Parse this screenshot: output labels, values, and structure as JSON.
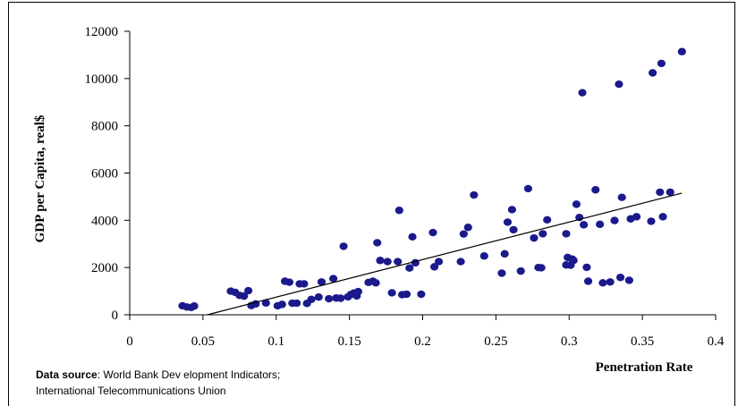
{
  "chart_data": {
    "type": "scatter",
    "title": "",
    "xlabel": "Penetration Rate",
    "ylabel": "GDP per Capita, real$",
    "xlim": [
      0,
      0.4
    ],
    "ylim": [
      0,
      12000
    ],
    "x_ticks": [
      "0",
      "0.05",
      "0.1",
      "0.15",
      "0.2",
      "0.25",
      "0.3",
      "0.35",
      "0.4"
    ],
    "y_ticks": [
      "0",
      "2000",
      "4000",
      "6000",
      "8000",
      "10000",
      "12000"
    ],
    "grid": false,
    "legend": "none",
    "marker_color": "#1a1a8c",
    "trendline": {
      "x": [
        0.053,
        0.377
      ],
      "y": [
        0,
        5150
      ]
    },
    "series": [
      {
        "points": [
          [
            0.036,
            380
          ],
          [
            0.039,
            330
          ],
          [
            0.042,
            310
          ],
          [
            0.044,
            370
          ],
          [
            0.069,
            1000
          ],
          [
            0.072,
            950
          ],
          [
            0.075,
            820
          ],
          [
            0.078,
            790
          ],
          [
            0.081,
            1020
          ],
          [
            0.083,
            390
          ],
          [
            0.086,
            460
          ],
          [
            0.093,
            500
          ],
          [
            0.101,
            380
          ],
          [
            0.104,
            440
          ],
          [
            0.106,
            1420
          ],
          [
            0.109,
            1380
          ],
          [
            0.111,
            490
          ],
          [
            0.114,
            490
          ],
          [
            0.116,
            1310
          ],
          [
            0.119,
            1310
          ],
          [
            0.121,
            480
          ],
          [
            0.124,
            650
          ],
          [
            0.129,
            750
          ],
          [
            0.131,
            1390
          ],
          [
            0.136,
            680
          ],
          [
            0.139,
            1530
          ],
          [
            0.141,
            710
          ],
          [
            0.144,
            700
          ],
          [
            0.146,
            2900
          ],
          [
            0.149,
            760
          ],
          [
            0.151,
            860
          ],
          [
            0.153,
            920
          ],
          [
            0.155,
            800
          ],
          [
            0.156,
            980
          ],
          [
            0.163,
            1370
          ],
          [
            0.166,
            1420
          ],
          [
            0.168,
            1350
          ],
          [
            0.169,
            3050
          ],
          [
            0.171,
            2300
          ],
          [
            0.176,
            2250
          ],
          [
            0.179,
            930
          ],
          [
            0.183,
            2250
          ],
          [
            0.184,
            4420
          ],
          [
            0.186,
            850
          ],
          [
            0.189,
            870
          ],
          [
            0.191,
            1980
          ],
          [
            0.193,
            3300
          ],
          [
            0.195,
            2200
          ],
          [
            0.199,
            870
          ],
          [
            0.207,
            3480
          ],
          [
            0.208,
            2030
          ],
          [
            0.211,
            2250
          ],
          [
            0.226,
            2250
          ],
          [
            0.228,
            3420
          ],
          [
            0.231,
            3700
          ],
          [
            0.235,
            5070
          ],
          [
            0.242,
            2490
          ],
          [
            0.254,
            1760
          ],
          [
            0.256,
            2580
          ],
          [
            0.258,
            3920
          ],
          [
            0.261,
            4450
          ],
          [
            0.262,
            3600
          ],
          [
            0.267,
            1850
          ],
          [
            0.272,
            5340
          ],
          [
            0.276,
            3250
          ],
          [
            0.279,
            2000
          ],
          [
            0.281,
            1990
          ],
          [
            0.282,
            3430
          ],
          [
            0.285,
            4020
          ],
          [
            0.298,
            3430
          ],
          [
            0.298,
            2110
          ],
          [
            0.299,
            2430
          ],
          [
            0.301,
            2100
          ],
          [
            0.302,
            2360
          ],
          [
            0.303,
            2300
          ],
          [
            0.305,
            4680
          ],
          [
            0.307,
            4120
          ],
          [
            0.309,
            9400
          ],
          [
            0.31,
            3810
          ],
          [
            0.312,
            2010
          ],
          [
            0.313,
            1420
          ],
          [
            0.318,
            5290
          ],
          [
            0.321,
            3830
          ],
          [
            0.323,
            1350
          ],
          [
            0.328,
            1390
          ],
          [
            0.331,
            3990
          ],
          [
            0.334,
            9760
          ],
          [
            0.335,
            1580
          ],
          [
            0.336,
            4970
          ],
          [
            0.341,
            1460
          ],
          [
            0.342,
            4060
          ],
          [
            0.346,
            4150
          ],
          [
            0.356,
            3960
          ],
          [
            0.357,
            10240
          ],
          [
            0.362,
            5190
          ],
          [
            0.363,
            10640
          ],
          [
            0.364,
            4150
          ],
          [
            0.369,
            5190
          ],
          [
            0.377,
            11140
          ]
        ]
      }
    ]
  },
  "source": {
    "label": "Data source",
    "line1": ": World Bank Dev elopment Indicators;",
    "line2": "International Telecommunications Union"
  }
}
